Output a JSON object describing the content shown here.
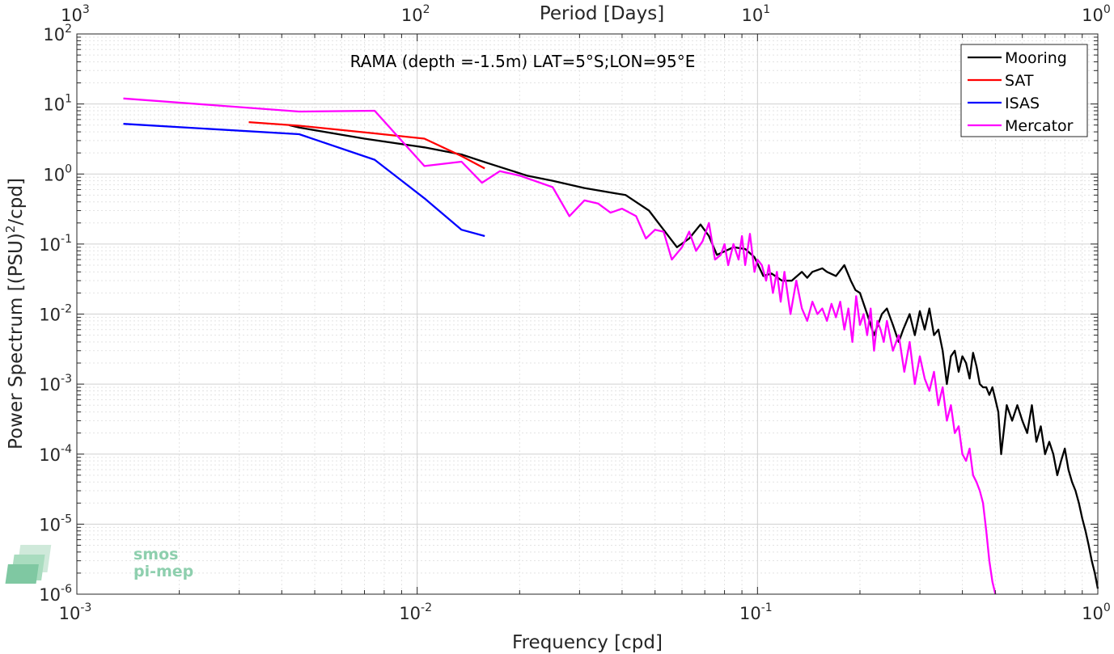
{
  "chart_data": {
    "type": "line",
    "title": "",
    "annotation": "RAMA (depth =-1.5m) LAT=5°S;LON=95°E",
    "xlabel": "Frequency [cpd]",
    "ylabel": "Power Spectrum [(PSU)",
    "ylabel_sup": "2",
    "ylabel_tail": "/cpd]",
    "top_label": "Period [Days]",
    "x_scale": "log",
    "y_scale": "log",
    "xlim": [
      0.001,
      1
    ],
    "ylim": [
      1e-06,
      100
    ],
    "grid": true,
    "legend_position": "top-right",
    "x_ticks": [
      {
        "base": "10",
        "exp": "-3"
      },
      {
        "base": "10",
        "exp": "-2"
      },
      {
        "base": "10",
        "exp": "-1"
      },
      {
        "base": "10",
        "exp": "0"
      }
    ],
    "y_ticks": [
      {
        "base": "10",
        "exp": "-6"
      },
      {
        "base": "10",
        "exp": "-5"
      },
      {
        "base": "10",
        "exp": "-4"
      },
      {
        "base": "10",
        "exp": "-3"
      },
      {
        "base": "10",
        "exp": "-2"
      },
      {
        "base": "10",
        "exp": "-1"
      },
      {
        "base": "10",
        "exp": "0"
      },
      {
        "base": "10",
        "exp": "1"
      },
      {
        "base": "10",
        "exp": "2"
      }
    ],
    "top_ticks": [
      {
        "base": "10",
        "exp": "3"
      },
      {
        "base": "10",
        "exp": "2"
      },
      {
        "base": "10",
        "exp": "1"
      },
      {
        "base": "10",
        "exp": "0"
      }
    ],
    "series": [
      {
        "name": "Mooring",
        "color": "#000000",
        "x": [
          0.0042,
          0.0045,
          0.007,
          0.0105,
          0.0135,
          0.016,
          0.021,
          0.025,
          0.031,
          0.041,
          0.048,
          0.052,
          0.058,
          0.063,
          0.068,
          0.072,
          0.076,
          0.085,
          0.092,
          0.098,
          0.104,
          0.11,
          0.118,
          0.126,
          0.135,
          0.14,
          0.145,
          0.155,
          0.16,
          0.17,
          0.18,
          0.188,
          0.194,
          0.2,
          0.21,
          0.22,
          0.232,
          0.24,
          0.25,
          0.26,
          0.268,
          0.28,
          0.29,
          0.3,
          0.31,
          0.32,
          0.33,
          0.34,
          0.35,
          0.36,
          0.37,
          0.38,
          0.39,
          0.4,
          0.41,
          0.42,
          0.43,
          0.44,
          0.45,
          0.46,
          0.47,
          0.48,
          0.49,
          0.5,
          0.51,
          0.52,
          0.54,
          0.56,
          0.58,
          0.6,
          0.62,
          0.64,
          0.66,
          0.68,
          0.7,
          0.72,
          0.74,
          0.76,
          0.78,
          0.8,
          0.82,
          0.84,
          0.86,
          0.88,
          0.9,
          0.92,
          0.94,
          0.96,
          0.98,
          1.0
        ],
        "y": [
          5.0,
          4.6,
          3.2,
          2.4,
          1.9,
          1.45,
          0.95,
          0.8,
          0.63,
          0.5,
          0.3,
          0.18,
          0.09,
          0.12,
          0.19,
          0.13,
          0.07,
          0.09,
          0.085,
          0.065,
          0.035,
          0.038,
          0.03,
          0.03,
          0.04,
          0.033,
          0.04,
          0.045,
          0.04,
          0.035,
          0.05,
          0.03,
          0.022,
          0.02,
          0.01,
          0.005,
          0.01,
          0.012,
          0.007,
          0.004,
          0.006,
          0.01,
          0.005,
          0.011,
          0.006,
          0.012,
          0.005,
          0.006,
          0.003,
          0.001,
          0.0025,
          0.003,
          0.0015,
          0.0025,
          0.002,
          0.0012,
          0.0028,
          0.0018,
          0.001,
          0.0009,
          0.0009,
          0.0007,
          0.0009,
          0.0006,
          0.0004,
          0.0001,
          0.0005,
          0.0003,
          0.0005,
          0.0003,
          0.0002,
          0.0005,
          0.00015,
          0.00025,
          0.0001,
          0.00015,
          0.0001,
          5e-05,
          8e-05,
          0.00012,
          6e-05,
          4e-05,
          3e-05,
          2e-05,
          1.2e-05,
          8e-06,
          5e-06,
          3e-06,
          2e-06,
          1.2e-06
        ]
      },
      {
        "name": "SAT",
        "color": "#ff0000",
        "x": [
          0.0032,
          0.0045,
          0.0075,
          0.0105,
          0.0135,
          0.0158
        ],
        "y": [
          5.5,
          4.9,
          3.8,
          3.2,
          1.8,
          1.2
        ]
      },
      {
        "name": "ISAS",
        "color": "#0000ff",
        "x": [
          0.00137,
          0.0045,
          0.0075,
          0.0105,
          0.0135,
          0.0158
        ],
        "y": [
          5.2,
          3.7,
          1.6,
          0.45,
          0.16,
          0.13
        ]
      },
      {
        "name": "Mercator",
        "color": "#ff00ff",
        "x": [
          0.00137,
          0.0045,
          0.0075,
          0.0105,
          0.0135,
          0.0155,
          0.0175,
          0.02,
          0.025,
          0.028,
          0.031,
          0.034,
          0.037,
          0.04,
          0.044,
          0.047,
          0.05,
          0.053,
          0.056,
          0.06,
          0.063,
          0.066,
          0.069,
          0.072,
          0.075,
          0.078,
          0.08,
          0.082,
          0.085,
          0.088,
          0.09,
          0.092,
          0.095,
          0.098,
          0.1,
          0.103,
          0.106,
          0.108,
          0.111,
          0.114,
          0.117,
          0.12,
          0.125,
          0.13,
          0.135,
          0.14,
          0.145,
          0.15,
          0.155,
          0.16,
          0.165,
          0.17,
          0.175,
          0.18,
          0.185,
          0.19,
          0.195,
          0.2,
          0.205,
          0.21,
          0.215,
          0.22,
          0.225,
          0.23,
          0.235,
          0.24,
          0.25,
          0.26,
          0.27,
          0.28,
          0.29,
          0.3,
          0.31,
          0.32,
          0.33,
          0.34,
          0.35,
          0.36,
          0.37,
          0.38,
          0.39,
          0.4,
          0.41,
          0.42,
          0.43,
          0.44,
          0.45,
          0.46,
          0.47,
          0.48,
          0.49,
          0.5
        ],
        "y": [
          12.0,
          7.8,
          8.0,
          1.3,
          1.5,
          0.75,
          1.1,
          0.95,
          0.65,
          0.25,
          0.42,
          0.38,
          0.28,
          0.32,
          0.25,
          0.12,
          0.16,
          0.15,
          0.06,
          0.09,
          0.15,
          0.08,
          0.11,
          0.2,
          0.06,
          0.07,
          0.1,
          0.05,
          0.1,
          0.06,
          0.13,
          0.05,
          0.14,
          0.04,
          0.06,
          0.05,
          0.03,
          0.05,
          0.02,
          0.04,
          0.015,
          0.04,
          0.01,
          0.03,
          0.012,
          0.008,
          0.015,
          0.01,
          0.012,
          0.008,
          0.014,
          0.009,
          0.015,
          0.006,
          0.012,
          0.004,
          0.018,
          0.007,
          0.01,
          0.005,
          0.012,
          0.003,
          0.008,
          0.006,
          0.004,
          0.008,
          0.003,
          0.005,
          0.0015,
          0.004,
          0.001,
          0.0025,
          0.0012,
          0.0008,
          0.0015,
          0.0005,
          0.0009,
          0.0003,
          0.0005,
          0.0002,
          0.00025,
          0.0001,
          8e-05,
          0.00012,
          5e-05,
          4e-05,
          3e-05,
          2e-05,
          8e-06,
          3e-06,
          1.5e-06,
          1e-06
        ]
      }
    ]
  },
  "logo": {
    "line1": "smos",
    "line2": "pi-mep"
  }
}
